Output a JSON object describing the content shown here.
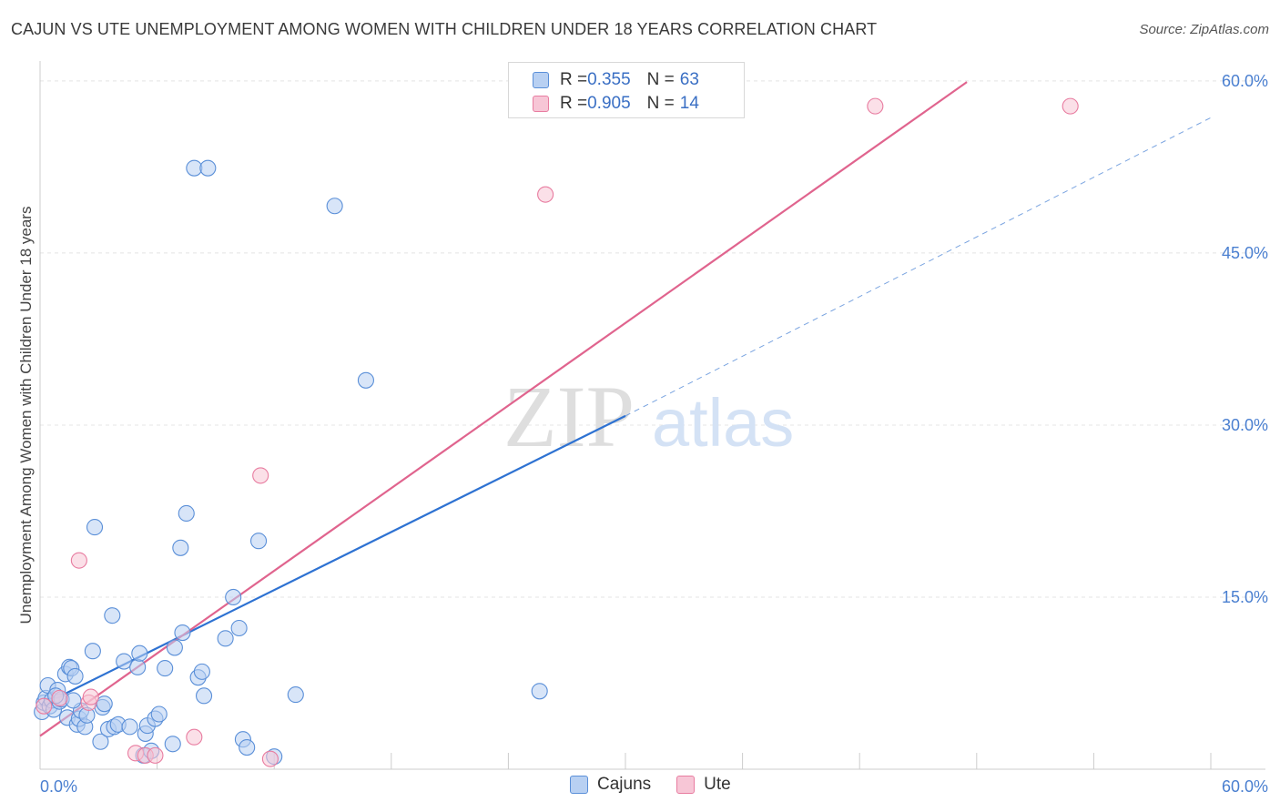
{
  "title": "CAJUN VS UTE UNEMPLOYMENT AMONG WOMEN WITH CHILDREN UNDER 18 YEARS CORRELATION CHART",
  "source": "Source: ZipAtlas.com",
  "watermark": {
    "zip": "ZIP",
    "atlas": "atlas"
  },
  "colors": {
    "blue": "#5a8fd8",
    "blue_fill": "#b8d0f2",
    "blue_line": "#2e72d2",
    "pink": "#e87ca0",
    "pink_fill": "#f7c6d6",
    "pink_line": "#e0648e",
    "tick": "#4a7fd0"
  },
  "legend_top": [
    {
      "r_label": "R = ",
      "r_value": "0.355",
      "n_label": "N = ",
      "n_value": "63"
    },
    {
      "r_label": "R = ",
      "r_value": "0.905",
      "n_label": "N = ",
      "n_value": "14"
    }
  ],
  "legend_bottom": [
    {
      "label": "Cajuns"
    },
    {
      "label": "Ute"
    }
  ],
  "chart_data": {
    "type": "scatter",
    "title": "CAJUN VS UTE UNEMPLOYMENT AMONG WOMEN WITH CHILDREN UNDER 18 YEARS CORRELATION CHART",
    "xlabel": "",
    "ylabel": "Unemployment Among Women with Children Under 18 years",
    "xlim": [
      0,
      60
    ],
    "ylim": [
      0,
      61.5
    ],
    "x_tick_labels": [
      {
        "value": 0,
        "label": "0.0%"
      },
      {
        "value": 60,
        "label": "60.0%"
      }
    ],
    "y_tick_labels": [
      {
        "value": 15,
        "label": "15.0%"
      },
      {
        "value": 30,
        "label": "30.0%"
      },
      {
        "value": 45,
        "label": "45.0%"
      },
      {
        "value": 60,
        "label": "60.0%"
      }
    ],
    "y_gridlines": [
      15,
      30,
      45,
      60
    ],
    "x_minor_ticks": [
      6,
      12,
      18,
      24,
      30,
      36,
      42,
      48,
      54,
      60
    ],
    "series": [
      {
        "name": "Cajuns",
        "r": 0.355,
        "n": 63,
        "points": [
          [
            0.1,
            5.0
          ],
          [
            0.2,
            5.8
          ],
          [
            0.3,
            6.2
          ],
          [
            0.4,
            7.3
          ],
          [
            0.5,
            5.5
          ],
          [
            0.6,
            6.0
          ],
          [
            0.7,
            5.2
          ],
          [
            0.9,
            6.9
          ],
          [
            1.0,
            5.9
          ],
          [
            1.1,
            6.1
          ],
          [
            1.3,
            8.3
          ],
          [
            1.4,
            4.5
          ],
          [
            1.5,
            8.9
          ],
          [
            1.6,
            8.8
          ],
          [
            1.8,
            8.1
          ],
          [
            1.9,
            3.9
          ],
          [
            2.0,
            4.4
          ],
          [
            2.1,
            5.1
          ],
          [
            2.3,
            3.7
          ],
          [
            2.7,
            10.3
          ],
          [
            2.8,
            21.1
          ],
          [
            3.1,
            2.4
          ],
          [
            3.2,
            5.4
          ],
          [
            3.3,
            5.7
          ],
          [
            3.5,
            3.5
          ],
          [
            3.7,
            13.4
          ],
          [
            3.8,
            3.7
          ],
          [
            4.0,
            3.9
          ],
          [
            4.3,
            9.4
          ],
          [
            4.6,
            3.7
          ],
          [
            5.0,
            8.9
          ],
          [
            5.1,
            10.1
          ],
          [
            5.3,
            1.2
          ],
          [
            5.4,
            3.1
          ],
          [
            5.5,
            3.8
          ],
          [
            5.7,
            1.6
          ],
          [
            5.9,
            4.4
          ],
          [
            6.1,
            4.8
          ],
          [
            6.4,
            8.8
          ],
          [
            6.8,
            2.2
          ],
          [
            6.9,
            10.6
          ],
          [
            7.2,
            19.3
          ],
          [
            7.3,
            11.9
          ],
          [
            7.5,
            22.3
          ],
          [
            7.9,
            52.4
          ],
          [
            8.1,
            8.0
          ],
          [
            8.3,
            8.5
          ],
          [
            8.4,
            6.4
          ],
          [
            8.6,
            52.4
          ],
          [
            9.5,
            11.4
          ],
          [
            9.9,
            15.0
          ],
          [
            10.2,
            12.3
          ],
          [
            10.4,
            2.6
          ],
          [
            10.6,
            1.9
          ],
          [
            11.2,
            19.9
          ],
          [
            12.0,
            1.1
          ],
          [
            13.1,
            6.5
          ],
          [
            15.1,
            49.1
          ],
          [
            16.7,
            33.9
          ],
          [
            25.6,
            6.8
          ],
          [
            1.7,
            6.0
          ],
          [
            2.4,
            4.7
          ],
          [
            0.8,
            6.4
          ]
        ]
      },
      {
        "name": "Ute",
        "r": 0.905,
        "n": 14,
        "points": [
          [
            0.2,
            5.5
          ],
          [
            1.0,
            6.2
          ],
          [
            2.0,
            18.2
          ],
          [
            2.5,
            5.8
          ],
          [
            2.6,
            6.3
          ],
          [
            4.9,
            1.4
          ],
          [
            5.4,
            1.2
          ],
          [
            5.9,
            1.2
          ],
          [
            7.9,
            2.8
          ],
          [
            11.3,
            25.6
          ],
          [
            11.8,
            0.9
          ],
          [
            25.9,
            50.1
          ],
          [
            42.8,
            57.8
          ],
          [
            52.8,
            57.8
          ]
        ]
      }
    ],
    "trend_lines": [
      {
        "series": "Cajuns",
        "x": [
          0,
          30
        ],
        "y": [
          5.5,
          30.8
        ],
        "style": "solid"
      },
      {
        "series": "Cajuns",
        "x": [
          30,
          60
        ],
        "y": [
          30.8,
          56.8
        ],
        "style": "dashed"
      },
      {
        "series": "Ute",
        "x": [
          0,
          47.5
        ],
        "y": [
          2.9,
          59.9
        ],
        "style": "solid"
      }
    ]
  }
}
